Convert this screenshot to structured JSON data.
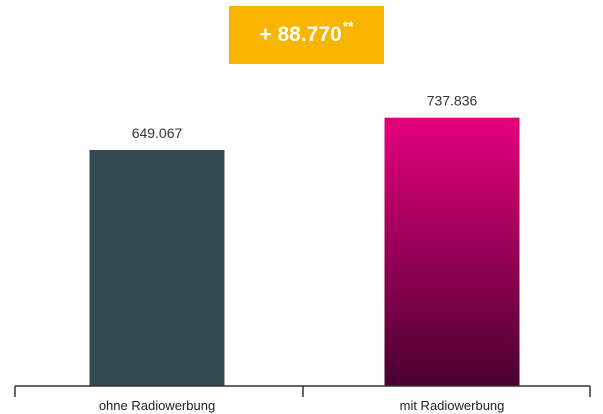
{
  "badge": {
    "delta": "+ 88.770",
    "mark": "**"
  },
  "colors": {
    "badge": "#f7b500",
    "bar_ohne": "#354a50",
    "bar_mit_top": "#e4007c",
    "bar_mit_bottom": "#4a0030",
    "axis": "#333333"
  },
  "chart_data": {
    "type": "bar",
    "categories": [
      "ohne Radiowerbung",
      "mit Radiowerbung"
    ],
    "values": [
      649.067,
      737.836
    ],
    "value_labels": [
      "649.067",
      "737.836"
    ],
    "ylim": [
      0,
      825
    ],
    "grid": false,
    "title": "",
    "xlabel": "",
    "ylabel": ""
  }
}
